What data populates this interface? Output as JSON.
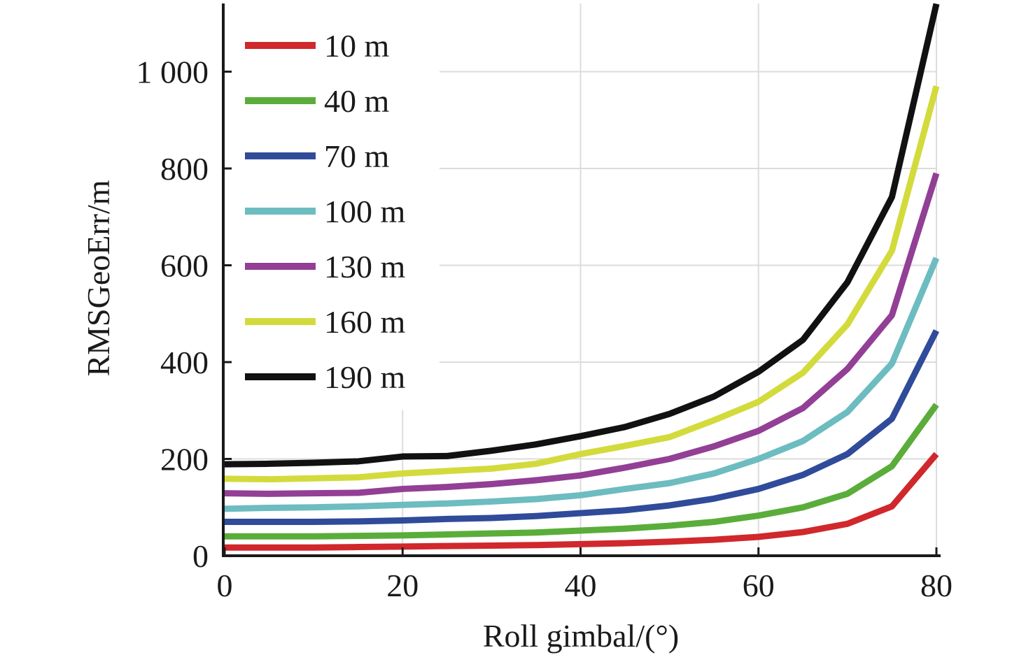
{
  "chart_data": {
    "type": "line",
    "title": "",
    "xlabel": "Roll gimbal/(°)",
    "ylabel": "RMSGeoErr/m",
    "xlim": [
      0,
      80
    ],
    "ylim": [
      0,
      1140
    ],
    "x_ticks": [
      0,
      20,
      40,
      60,
      80
    ],
    "x_tick_labels": [
      "0",
      "20",
      "40",
      "60",
      "80"
    ],
    "y_ticks": [
      0,
      200,
      400,
      600,
      800,
      1000
    ],
    "y_tick_labels": [
      "0",
      "200",
      "400",
      "600",
      "800",
      "1 000"
    ],
    "grid": true,
    "legend_position": "top-left",
    "x": [
      0,
      5,
      10,
      15,
      20,
      25,
      30,
      35,
      40,
      45,
      50,
      55,
      60,
      65,
      70,
      75,
      80
    ],
    "series": [
      {
        "name": "10 m",
        "color": "#d0282c",
        "values": [
          17,
          17,
          17,
          18,
          19,
          20,
          21,
          22,
          24,
          26,
          29,
          33,
          39,
          49,
          66,
          102,
          210
        ]
      },
      {
        "name": "40 m",
        "color": "#5aad3a",
        "values": [
          40,
          40,
          40,
          41,
          42,
          44,
          46,
          48,
          52,
          56,
          62,
          70,
          83,
          100,
          128,
          185,
          312
        ]
      },
      {
        "name": "70 m",
        "color": "#2f4b9a",
        "values": [
          70,
          70,
          70,
          71,
          73,
          76,
          78,
          82,
          88,
          94,
          104,
          118,
          138,
          167,
          210,
          283,
          465
        ]
      },
      {
        "name": "100 m",
        "color": "#6cbcc0",
        "values": [
          97,
          99,
          100,
          102,
          105,
          108,
          112,
          117,
          125,
          138,
          150,
          170,
          200,
          237,
          297,
          397,
          615
        ]
      },
      {
        "name": "130 m",
        "color": "#923f95",
        "values": [
          129,
          128,
          129,
          130,
          138,
          142,
          148,
          156,
          166,
          182,
          200,
          226,
          258,
          305,
          386,
          497,
          790
        ]
      },
      {
        "name": "160 m",
        "color": "#d3db3c",
        "values": [
          159,
          158,
          160,
          162,
          170,
          175,
          180,
          190,
          210,
          227,
          245,
          280,
          318,
          378,
          478,
          630,
          970
        ]
      },
      {
        "name": "190 m",
        "color": "#111111",
        "values": [
          189,
          190,
          192,
          195,
          205,
          206,
          217,
          230,
          247,
          266,
          293,
          329,
          380,
          446,
          565,
          741,
          1140
        ]
      }
    ]
  }
}
